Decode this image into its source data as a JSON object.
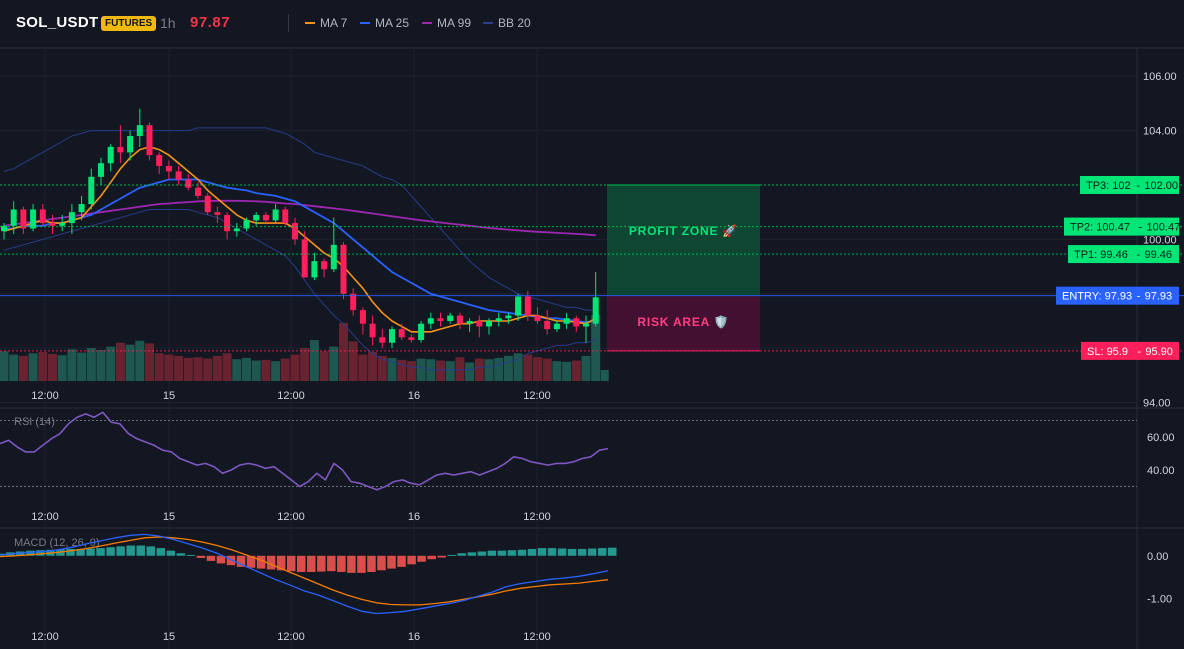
{
  "header": {
    "symbol": "SOL_USDT",
    "badge": "FUTURES",
    "timeframe": "1h",
    "last_price": "97.87",
    "legend": [
      {
        "label": "MA 7",
        "color": "#f7931a"
      },
      {
        "label": "MA 25",
        "color": "#2962ff"
      },
      {
        "label": "MA 99",
        "color": "#9c27b0"
      },
      {
        "label": "BB 20",
        "color": "#2a3f8f"
      }
    ]
  },
  "colors": {
    "up": "#26a69a",
    "up_bright": "#00e676",
    "down": "#f23645",
    "down_bright": "#ff1f5a",
    "ma7": "#f7931a",
    "ma25": "#2962ff",
    "ma99": "#9c27b0",
    "bb": "#283b8a",
    "rsi": "#7e57c2",
    "macd": "#2962ff",
    "signal": "#f57c00",
    "hist_up": "#26a69a",
    "hist_down": "#ef5350",
    "entry": "#2962ff",
    "tp": "#00e676",
    "sl": "#ff1f5a"
  },
  "chart_data": [
    {
      "type": "candlestick",
      "title": "SOL_USDT 1h",
      "ylim": [
        93.8,
        107.0
      ],
      "y_ticks": [
        "94.00",
        "96.00",
        "98.00",
        "100.00",
        "102.00",
        "104.00",
        "106.00"
      ],
      "x_ticks": [
        "12:00",
        "15",
        "12:00",
        "16",
        "12:00"
      ],
      "candles": [
        [
          100.3,
          100.6,
          100.0,
          100.5
        ],
        [
          100.5,
          101.4,
          100.2,
          101.1
        ],
        [
          101.1,
          101.2,
          100.2,
          100.4
        ],
        [
          100.4,
          101.3,
          100.3,
          101.1
        ],
        [
          101.1,
          101.3,
          100.5,
          100.6
        ],
        [
          100.6,
          100.9,
          100.2,
          100.5
        ],
        [
          100.5,
          100.9,
          100.3,
          100.6
        ],
        [
          100.6,
          101.3,
          100.2,
          101.0
        ],
        [
          101.0,
          101.6,
          100.7,
          101.3
        ],
        [
          101.3,
          102.6,
          101.1,
          102.3
        ],
        [
          102.3,
          103.0,
          102.0,
          102.8
        ],
        [
          102.8,
          103.5,
          102.5,
          103.4
        ],
        [
          103.4,
          104.2,
          102.8,
          103.2
        ],
        [
          103.2,
          104.0,
          102.9,
          103.8
        ],
        [
          103.8,
          104.8,
          103.4,
          104.2
        ],
        [
          104.2,
          104.3,
          102.9,
          103.1
        ],
        [
          103.1,
          103.2,
          102.4,
          102.7
        ],
        [
          102.7,
          102.9,
          102.2,
          102.5
        ],
        [
          102.5,
          102.7,
          102.0,
          102.2
        ],
        [
          102.2,
          102.4,
          101.8,
          101.9
        ],
        [
          101.9,
          102.1,
          101.5,
          101.6
        ],
        [
          101.6,
          101.7,
          100.9,
          101.0
        ],
        [
          101.0,
          101.2,
          100.6,
          100.9
        ],
        [
          100.9,
          101.0,
          100.0,
          100.3
        ],
        [
          100.3,
          100.6,
          100.1,
          100.4
        ],
        [
          100.4,
          100.8,
          100.3,
          100.7
        ],
        [
          100.7,
          101.0,
          100.5,
          100.9
        ],
        [
          100.9,
          101.0,
          100.6,
          100.7
        ],
        [
          100.7,
          101.3,
          100.6,
          101.1
        ],
        [
          101.1,
          101.2,
          100.5,
          100.6
        ],
        [
          100.6,
          100.8,
          99.8,
          100.0
        ],
        [
          100.0,
          100.3,
          98.6,
          98.6
        ],
        [
          98.6,
          99.5,
          98.5,
          99.2
        ],
        [
          99.2,
          99.3,
          98.6,
          98.9
        ],
        [
          98.9,
          100.8,
          98.8,
          99.8
        ],
        [
          99.8,
          99.9,
          97.8,
          98.0
        ],
        [
          98.0,
          98.2,
          97.2,
          97.4
        ],
        [
          97.4,
          97.5,
          96.5,
          96.9
        ],
        [
          96.9,
          97.2,
          96.1,
          96.4
        ],
        [
          96.4,
          96.7,
          96.0,
          96.2
        ],
        [
          96.2,
          96.8,
          96.0,
          96.7
        ],
        [
          96.7,
          96.9,
          96.3,
          96.4
        ],
        [
          96.4,
          96.5,
          96.2,
          96.3
        ],
        [
          96.3,
          97.0,
          96.2,
          96.9
        ],
        [
          96.9,
          97.3,
          96.7,
          97.1
        ],
        [
          97.1,
          97.3,
          96.8,
          97.0
        ],
        [
          97.0,
          97.3,
          96.9,
          97.2
        ],
        [
          97.2,
          97.3,
          96.7,
          96.9
        ],
        [
          96.9,
          97.1,
          96.6,
          97.0
        ],
        [
          97.0,
          97.2,
          96.4,
          96.8
        ],
        [
          96.8,
          97.1,
          96.5,
          97.0
        ],
        [
          97.0,
          97.3,
          96.8,
          97.1
        ],
        [
          97.1,
          97.3,
          96.9,
          97.2
        ],
        [
          97.2,
          98.0,
          97.0,
          97.9
        ],
        [
          97.9,
          98.1,
          97.0,
          97.2
        ],
        [
          97.2,
          97.5,
          96.9,
          97.0
        ],
        [
          97.0,
          97.4,
          96.5,
          96.7
        ],
        [
          96.7,
          97.0,
          96.6,
          96.9
        ],
        [
          96.9,
          97.3,
          96.7,
          97.1
        ],
        [
          97.1,
          97.2,
          96.6,
          96.8
        ],
        [
          96.8,
          97.2,
          96.2,
          96.9
        ],
        [
          96.9,
          98.8,
          96.8,
          97.87
        ]
      ],
      "volume": [
        45,
        40,
        38,
        42,
        44,
        41,
        39,
        48,
        43,
        50,
        47,
        52,
        58,
        55,
        61,
        57,
        42,
        40,
        38,
        35,
        36,
        34,
        38,
        42,
        33,
        35,
        31,
        32,
        30,
        34,
        40,
        50,
        62,
        45,
        52,
        88,
        60,
        40,
        44,
        38,
        35,
        32,
        30,
        34,
        33,
        31,
        30,
        36,
        28,
        34,
        33,
        35,
        38,
        42,
        40,
        36,
        34,
        30,
        29,
        31,
        38,
        100
      ],
      "ma7": [
        100.3,
        100.4,
        100.5,
        100.6,
        100.7,
        100.6,
        100.6,
        100.7,
        100.8,
        101.2,
        101.6,
        102.1,
        102.6,
        103.0,
        103.3,
        103.4,
        103.3,
        103.1,
        102.8,
        102.5,
        102.2,
        101.8,
        101.5,
        101.2,
        100.9,
        100.7,
        100.6,
        100.6,
        100.6,
        100.6,
        100.4,
        100.1,
        99.8,
        99.5,
        99.3,
        99.0,
        98.6,
        98.2,
        97.7,
        97.3,
        97.0,
        96.8,
        96.6,
        96.6,
        96.6,
        96.7,
        96.8,
        96.9,
        96.9,
        97.0,
        97.0,
        97.0,
        97.0,
        97.1,
        97.2,
        97.2,
        97.1,
        97.0,
        97.0,
        96.95,
        96.9,
        97.1
      ],
      "ma25": [
        100.4,
        100.4,
        100.5,
        100.5,
        100.5,
        100.6,
        100.6,
        100.7,
        100.8,
        100.9,
        101.1,
        101.3,
        101.5,
        101.7,
        101.9,
        102.0,
        102.1,
        102.2,
        102.2,
        102.2,
        102.2,
        102.1,
        102.0,
        101.9,
        101.85,
        101.8,
        101.7,
        101.65,
        101.6,
        101.5,
        101.4,
        101.2,
        101.0,
        100.8,
        100.6,
        100.3,
        100.0,
        99.7,
        99.4,
        99.1,
        98.8,
        98.6,
        98.4,
        98.2,
        98.0,
        97.9,
        97.8,
        97.7,
        97.6,
        97.5,
        97.4,
        97.35,
        97.3,
        97.25,
        97.2,
        97.15,
        97.1,
        97.1,
        97.05,
        97.0,
        96.95,
        97.0
      ],
      "ma99": [
        100.5,
        100.55,
        100.6,
        100.65,
        100.7,
        100.75,
        100.8,
        100.85,
        100.9,
        100.95,
        101.0,
        101.05,
        101.1,
        101.15,
        101.2,
        101.25,
        101.3,
        101.32,
        101.35,
        101.37,
        101.4,
        101.41,
        101.42,
        101.42,
        101.42,
        101.41,
        101.4,
        101.38,
        101.35,
        101.32,
        101.3,
        101.26,
        101.22,
        101.18,
        101.14,
        101.1,
        101.05,
        101.0,
        100.95,
        100.9,
        100.85,
        100.8,
        100.75,
        100.7,
        100.66,
        100.62,
        100.58,
        100.54,
        100.5,
        100.46,
        100.42,
        100.39,
        100.36,
        100.33,
        100.3,
        100.28,
        100.26,
        100.24,
        100.22,
        100.2,
        100.18,
        100.15
      ],
      "bb_upper": [
        102.5,
        102.6,
        102.8,
        103.0,
        103.2,
        103.4,
        103.6,
        103.8,
        103.9,
        104.0,
        104.0,
        104.0,
        104.0,
        104.0,
        104.0,
        104.0,
        104.0,
        104.0,
        104.0,
        104.0,
        104.1,
        104.1,
        104.1,
        104.1,
        104.1,
        104.1,
        104.1,
        104.1,
        104.0,
        103.9,
        103.7,
        103.5,
        103.2,
        103.1,
        103.0,
        102.9,
        102.8,
        102.7,
        102.5,
        102.3,
        102.2,
        102.0,
        101.6,
        101.2,
        100.8,
        100.4,
        100.0,
        99.6,
        99.2,
        98.9,
        98.6,
        98.4,
        98.2,
        98.0,
        97.9,
        97.8,
        97.7,
        97.6,
        97.5,
        97.5,
        97.4,
        97.4
      ],
      "bb_lower": [
        99.6,
        99.7,
        99.8,
        99.9,
        100.0,
        100.1,
        100.2,
        100.3,
        100.4,
        100.5,
        100.6,
        100.7,
        100.8,
        100.9,
        101.0,
        101.1,
        101.1,
        101.1,
        101.1,
        101.1,
        101.0,
        100.9,
        100.8,
        100.6,
        100.4,
        100.2,
        100.0,
        99.8,
        99.6,
        99.4,
        99.0,
        98.5,
        98.0,
        97.6,
        97.2,
        96.9,
        96.5,
        96.1,
        95.8,
        95.6,
        95.5,
        95.4,
        95.3,
        95.3,
        95.2,
        95.2,
        95.2,
        95.2,
        95.2,
        95.3,
        95.3,
        95.4,
        95.5,
        95.6,
        95.8,
        95.9,
        96.0,
        96.1,
        96.1,
        96.2,
        96.2,
        96.3
      ]
    },
    {
      "type": "line",
      "title": "RSI (14)",
      "ylim": [
        20,
        77
      ],
      "y_ticks": [
        "40.00",
        "60.00"
      ],
      "x_ticks": [
        "12:00",
        "15",
        "12:00",
        "16",
        "12:00"
      ],
      "levels": [
        70,
        30
      ],
      "values": [
        56,
        58,
        54,
        51,
        51,
        55,
        59,
        62,
        68,
        72,
        74,
        72,
        75,
        69,
        68,
        62,
        59,
        57,
        55,
        52,
        51,
        47,
        45,
        43,
        44,
        42,
        38,
        40,
        43,
        44,
        43,
        41,
        42,
        38,
        34,
        30,
        33,
        38,
        34,
        44,
        40,
        33,
        32,
        30,
        28,
        30,
        33,
        34,
        32,
        31,
        34,
        37,
        38,
        37,
        38,
        39,
        37,
        39,
        41,
        44,
        48,
        47,
        45,
        44,
        43,
        44,
        44,
        45,
        47,
        48,
        52,
        53
      ],
      "x_end": 608
    },
    {
      "type": "bar+line",
      "title": "MACD (12, 26, 9)",
      "ylim": [
        -1.55,
        0.65
      ],
      "y_ticks": [
        "0.00",
        "-1.00"
      ],
      "x_ticks": [
        "12:00",
        "15",
        "12:00",
        "16",
        "12:00"
      ],
      "histogram": [
        0.05,
        0.08,
        0.1,
        0.12,
        0.13,
        0.14,
        0.15,
        0.16,
        0.16,
        0.17,
        0.18,
        0.2,
        0.22,
        0.24,
        0.24,
        0.22,
        0.18,
        0.12,
        0.06,
        0.02,
        -0.05,
        -0.12,
        -0.18,
        -0.22,
        -0.26,
        -0.28,
        -0.3,
        -0.32,
        -0.34,
        -0.36,
        -0.38,
        -0.38,
        -0.37,
        -0.36,
        -0.38,
        -0.4,
        -0.4,
        -0.38,
        -0.34,
        -0.3,
        -0.26,
        -0.2,
        -0.14,
        -0.08,
        -0.04,
        0.02,
        0.06,
        0.08,
        0.1,
        0.12,
        0.12,
        0.13,
        0.14,
        0.16,
        0.18,
        0.18,
        0.17,
        0.16,
        0.16,
        0.17,
        0.18,
        0.19
      ],
      "macd": [
        0.02,
        0.05,
        0.08,
        0.1,
        0.14,
        0.2,
        0.28,
        0.35,
        0.42,
        0.48,
        0.5,
        0.46,
        0.38,
        0.28,
        0.18,
        0.06,
        -0.1,
        -0.25,
        -0.4,
        -0.55,
        -0.68,
        -0.82,
        -0.92,
        -1.05,
        -1.18,
        -1.3,
        -1.35,
        -1.33,
        -1.3,
        -1.24,
        -1.18,
        -1.12,
        -1.05,
        -0.95,
        -0.85,
        -0.72,
        -0.65,
        -0.6,
        -0.55,
        -0.52,
        -0.48,
        -0.42,
        -0.35
      ],
      "signal": [
        -0.02,
        0.0,
        0.02,
        0.05,
        0.08,
        0.12,
        0.17,
        0.23,
        0.3,
        0.36,
        0.42,
        0.44,
        0.42,
        0.38,
        0.32,
        0.24,
        0.14,
        0.02,
        -0.1,
        -0.24,
        -0.38,
        -0.52,
        -0.66,
        -0.8,
        -0.92,
        -1.02,
        -1.1,
        -1.14,
        -1.15,
        -1.15,
        -1.12,
        -1.08,
        -1.02,
        -0.96,
        -0.9,
        -0.82,
        -0.76,
        -0.72,
        -0.68,
        -0.66,
        -0.64,
        -0.6,
        -0.56
      ]
    }
  ],
  "trade": {
    "entry_price": 97.93,
    "tp1_price": 99.46,
    "tp2_price": 100.47,
    "tp3_price": 102.0,
    "sl_price": 95.9,
    "entry_tag": "ENTRY: 97.93",
    "entry_axis": "97.93",
    "tp1_tag": "TP1: 99.46",
    "tp1_axis": "99.46",
    "tp2_tag": "TP2: 100.47",
    "tp2_axis": "100.47",
    "tp3_tag": "TP3: 102",
    "tp3_axis": "102.00",
    "sl_tag": "SL: 95.9",
    "sl_axis": "95.90",
    "profit_label": "PROFIT ZONE 🚀",
    "risk_label": "RISK AREA 🛡️"
  }
}
